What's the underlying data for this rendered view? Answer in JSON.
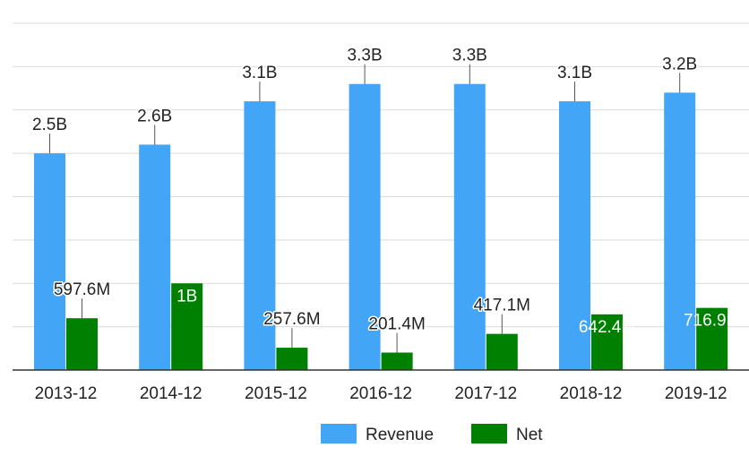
{
  "chart_data": {
    "type": "bar",
    "categories": [
      "2013-12",
      "2014-12",
      "2015-12",
      "2016-12",
      "2017-12",
      "2018-12",
      "2019-12"
    ],
    "series": [
      {
        "name": "Revenue",
        "color": "#42a5f5",
        "values": [
          2500000000.0,
          2600000000.0,
          3100000000.0,
          3300000000.0,
          3300000000.0,
          3100000000.0,
          3200000000.0
        ],
        "labels": [
          "2.5B",
          "2.6B",
          "3.1B",
          "3.3B",
          "3.3B",
          "3.1B",
          "3.2B"
        ]
      },
      {
        "name": "Net",
        "color": "#008000",
        "values": [
          597600000.0,
          1000000000.0,
          257600000.0,
          201400000.0,
          417100000.0,
          642400000.0,
          716900000.0
        ],
        "labels": [
          "597.6M",
          "1B",
          "257.6M",
          "201.4M",
          "417.1M",
          "642.4M",
          "716.9M"
        ]
      }
    ],
    "ylim": [
      0,
      4000000000.0
    ],
    "grid": true,
    "legend_position": "bottom"
  }
}
